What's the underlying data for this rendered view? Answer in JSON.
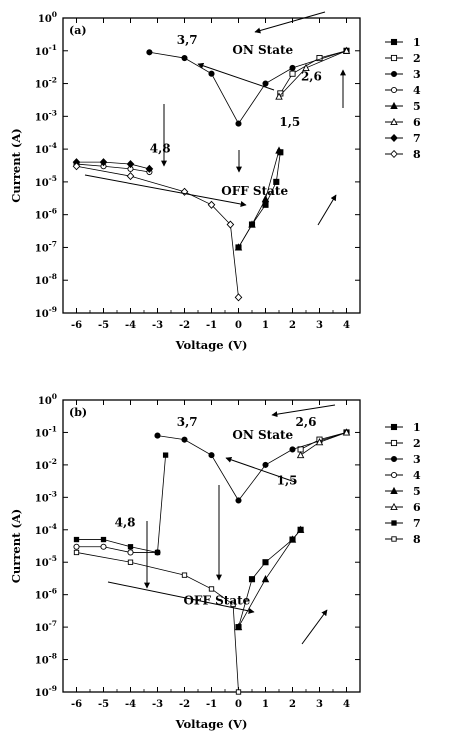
{
  "chart_data": [
    {
      "type": "line",
      "panel_label": "(a)",
      "xlabel": "Voltage (V)",
      "ylabel": "Current (A)",
      "xlim": [
        -6.5,
        4.5
      ],
      "ylim_log10": [
        -9,
        0
      ],
      "y_scale": "log",
      "x_ticks": [
        -6,
        -5,
        -4,
        -3,
        -2,
        -1,
        0,
        1,
        2,
        3,
        4
      ],
      "y_ticks": [
        {
          "base": "10",
          "exp": "0"
        },
        {
          "base": "10",
          "exp": "-1"
        },
        {
          "base": "10",
          "exp": "-2"
        },
        {
          "base": "10",
          "exp": "-3"
        },
        {
          "base": "10",
          "exp": "-4"
        },
        {
          "base": "10",
          "exp": "-5"
        },
        {
          "base": "10",
          "exp": "-6"
        },
        {
          "base": "10",
          "exp": "-7"
        },
        {
          "base": "10",
          "exp": "-8"
        },
        {
          "base": "10",
          "exp": "-9"
        }
      ],
      "grid": false,
      "legend_position": "right",
      "annotations": [
        {
          "text": "3,7",
          "x": -1.9,
          "y": -0.8
        },
        {
          "text": "ON State",
          "x": 0.9,
          "y": -1.1
        },
        {
          "text": "2,6",
          "x": 2.7,
          "y": -1.9
        },
        {
          "text": "1,5",
          "x": 1.9,
          "y": -3.3
        },
        {
          "text": "4,8",
          "x": -2.9,
          "y": -4.1
        },
        {
          "text": "OFF State",
          "x": 0.6,
          "y": -5.4
        }
      ],
      "series": [
        {
          "name": "1",
          "marker": "square-filled",
          "x": [
            0.0,
            0.5,
            1.0,
            1.4,
            1.55
          ],
          "y": [
            1e-07,
            5e-07,
            2e-06,
            1e-05,
            8e-05
          ]
        },
        {
          "name": "2",
          "marker": "square-open",
          "x": [
            1.55,
            2.0,
            3.0,
            4.0
          ],
          "y": [
            0.005,
            0.02,
            0.06,
            0.1
          ]
        },
        {
          "name": "3",
          "marker": "circle-filled",
          "x": [
            4.0,
            2.0,
            1.0,
            0.0,
            -1.0,
            -2.0,
            -3.3
          ],
          "y": [
            0.1,
            0.03,
            0.01,
            0.0006,
            0.02,
            0.06,
            0.09
          ]
        },
        {
          "name": "4",
          "marker": "circle-open",
          "x": [
            -3.3,
            -4.0,
            -5.0,
            -6.0
          ],
          "y": [
            2e-05,
            2.5e-05,
            3e-05,
            3.5e-05
          ]
        },
        {
          "name": "5",
          "marker": "triangle-filled",
          "x": [
            0.0,
            0.5,
            1.0,
            1.5
          ],
          "y": [
            1e-07,
            5e-07,
            3e-06,
            9e-05
          ]
        },
        {
          "name": "6",
          "marker": "triangle-open",
          "x": [
            1.5,
            2.5,
            4.0
          ],
          "y": [
            0.004,
            0.03,
            0.1
          ]
        },
        {
          "name": "7",
          "marker": "diamond-filled",
          "x": [
            -6.0,
            -5.0,
            -4.0,
            -3.3
          ],
          "y": [
            4e-05,
            4e-05,
            3.5e-05,
            2.5e-05
          ]
        },
        {
          "name": "8",
          "marker": "diamond-open",
          "x": [
            -6.0,
            -4.0,
            -2.0,
            -1.0,
            -0.3,
            0.0
          ],
          "y": [
            3e-05,
            1.5e-05,
            5e-06,
            2e-06,
            5e-07,
            3e-09
          ]
        }
      ]
    },
    {
      "type": "line",
      "panel_label": "(b)",
      "xlabel": "Voltage (V)",
      "ylabel": "Current (A)",
      "xlim": [
        -6.5,
        4.5
      ],
      "ylim_log10": [
        -9,
        0
      ],
      "y_scale": "log",
      "x_ticks": [
        -6,
        -5,
        -4,
        -3,
        -2,
        -1,
        0,
        1,
        2,
        3,
        4
      ],
      "y_ticks": [
        {
          "base": "10",
          "exp": "0"
        },
        {
          "base": "10",
          "exp": "-1"
        },
        {
          "base": "10",
          "exp": "-2"
        },
        {
          "base": "10",
          "exp": "-3"
        },
        {
          "base": "10",
          "exp": "-4"
        },
        {
          "base": "10",
          "exp": "-5"
        },
        {
          "base": "10",
          "exp": "-6"
        },
        {
          "base": "10",
          "exp": "-7"
        },
        {
          "base": "10",
          "exp": "-8"
        },
        {
          "base": "10",
          "exp": "-9"
        }
      ],
      "grid": false,
      "legend_position": "right",
      "annotations": [
        {
          "text": "3,7",
          "x": -1.9,
          "y": -0.8
        },
        {
          "text": "ON State",
          "x": 0.9,
          "y": -1.2
        },
        {
          "text": "2,6",
          "x": 2.5,
          "y": -0.8
        },
        {
          "text": "1,5",
          "x": 1.8,
          "y": -2.6
        },
        {
          "text": "4,8",
          "x": -4.2,
          "y": -3.9
        },
        {
          "text": "OFF State",
          "x": -0.8,
          "y": -6.3
        }
      ],
      "series": [
        {
          "name": "1",
          "marker": "square-filled",
          "x": [
            0.0,
            0.5,
            1.0,
            2.0,
            2.3
          ],
          "y": [
            1e-07,
            3e-06,
            1e-05,
            5e-05,
            0.0001
          ]
        },
        {
          "name": "2",
          "marker": "square-open",
          "x": [
            2.3,
            3.0,
            4.0
          ],
          "y": [
            0.03,
            0.06,
            0.1
          ]
        },
        {
          "name": "3",
          "marker": "circle-filled",
          "x": [
            4.0,
            2.0,
            1.0,
            0.0,
            -1.0,
            -2.0,
            -3.0
          ],
          "y": [
            0.1,
            0.03,
            0.01,
            0.0008,
            0.02,
            0.06,
            0.08
          ]
        },
        {
          "name": "4",
          "marker": "circle-open",
          "x": [
            -3.0,
            -4.0,
            -5.0,
            -6.0
          ],
          "y": [
            2e-05,
            2e-05,
            3e-05,
            3e-05
          ]
        },
        {
          "name": "5",
          "marker": "triangle-filled",
          "x": [
            0.0,
            1.0,
            2.0,
            2.3
          ],
          "y": [
            1e-07,
            3e-06,
            5e-05,
            0.0001
          ]
        },
        {
          "name": "6",
          "marker": "triangle-open",
          "x": [
            2.3,
            3.0,
            4.0
          ],
          "y": [
            0.02,
            0.05,
            0.1
          ]
        },
        {
          "name": "7",
          "marker": "square-filled-small",
          "x": [
            -6.0,
            -5.0,
            -4.0,
            -3.0,
            -2.7
          ],
          "y": [
            5e-05,
            5e-05,
            3e-05,
            2e-05,
            0.02
          ]
        },
        {
          "name": "8",
          "marker": "square-open-small",
          "x": [
            -6.0,
            -4.0,
            -2.0,
            -1.0,
            -0.2,
            0.0
          ],
          "y": [
            2e-05,
            1e-05,
            4e-06,
            1.5e-06,
            5e-07,
            1e-09
          ]
        }
      ]
    }
  ]
}
